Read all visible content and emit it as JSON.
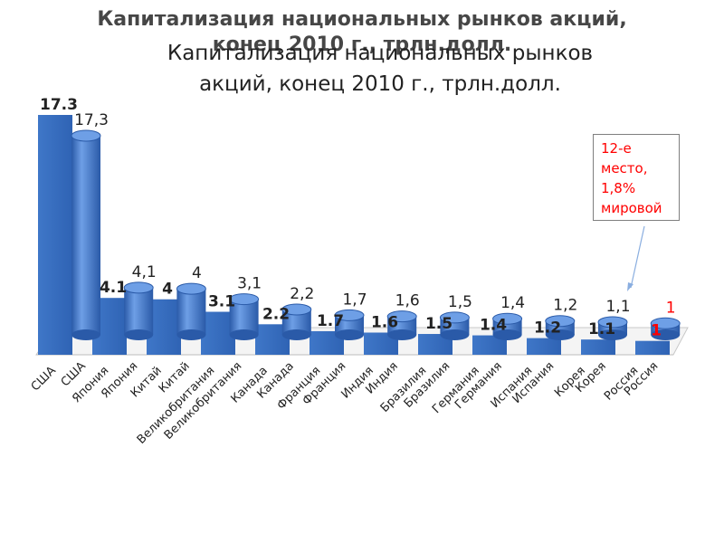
{
  "titles": {
    "back": "Капитализация национальных рынков акций, конец 2010 г., трлн.долл.",
    "front_line1": "Капитализация национальных рынков",
    "front_line2": "акций, конец 2010 г., трлн.долл."
  },
  "callout": {
    "line1": "12-е",
    "line2": "место,",
    "line3": "1,8%",
    "line4": "мировой"
  },
  "colors": {
    "flat_bar": "#3f77c8",
    "cylinder_light": "#6e9fe6",
    "cylinder_dark": "#2a5aa8",
    "highlight_label": "#ff0000",
    "callout_arrow": "#8aaee0"
  },
  "chart_data": [
    {
      "type": "bar",
      "title": "",
      "categories": [
        "США",
        "Япония",
        "Китай",
        "Великобритания",
        "Канада",
        "Франция",
        "Индия",
        "Бразилия",
        "Германия",
        "Испания",
        "Корея",
        "Россия"
      ],
      "values": [
        17.3,
        4.1,
        4,
        3.1,
        2.2,
        1.7,
        1.6,
        1.5,
        1.4,
        1.2,
        1.1,
        1
      ],
      "value_labels": [
        "17.3",
        "4.1",
        "4",
        "3.1",
        "2.2",
        "1.7",
        "1.6",
        "1.5",
        "1.4",
        "1.2",
        "1.1",
        "1"
      ],
      "ylim": [
        0,
        17.3
      ]
    },
    {
      "type": "bar",
      "title": "",
      "categories": [
        "США",
        "Япония",
        "Китай",
        "Великобритания",
        "Канада",
        "Франция",
        "Индия",
        "Бразилия",
        "Германия",
        "Испания",
        "Корея",
        "Россия"
      ],
      "values": [
        17.3,
        4.1,
        4,
        3.1,
        2.2,
        1.7,
        1.6,
        1.5,
        1.4,
        1.2,
        1.1,
        1
      ],
      "value_labels": [
        "17,3",
        "4,1",
        "4",
        "3,1",
        "2,2",
        "1,7",
        "1,6",
        "1,5",
        "1,4",
        "1,2",
        "1,1",
        "1"
      ],
      "ylim": [
        0,
        17.3
      ]
    }
  ]
}
